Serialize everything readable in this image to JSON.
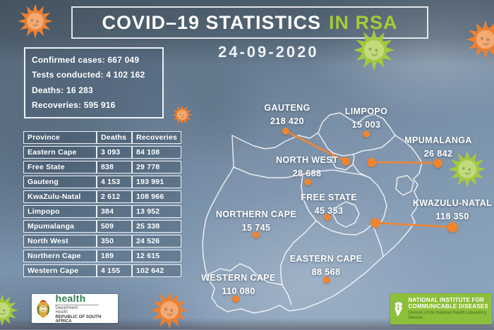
{
  "title": {
    "main": "COVID–19 STATISTICS",
    "highlight": "IN RSA"
  },
  "date": "24-09-2020",
  "summary": {
    "items": [
      {
        "text": "Confirmed cases: 667 049"
      },
      {
        "text": "Tests conducted: 4 102 162"
      },
      {
        "text": "Deaths: 16 283"
      },
      {
        "text": "Recoveries: 595 916"
      }
    ]
  },
  "table": {
    "headers": [
      "Province",
      "Deaths",
      "Recoveries"
    ],
    "rows": [
      [
        "Eastern Cape",
        "3 093",
        "84 108"
      ],
      [
        "Free State",
        "838",
        "29 778"
      ],
      [
        "Gauteng",
        "4 153",
        "193 991"
      ],
      [
        "KwaZulu-Natal",
        "2 612",
        "108 966"
      ],
      [
        "Limpopo",
        "384",
        "13 952"
      ],
      [
        "Mpumalanga",
        "509",
        "25 338"
      ],
      [
        "North West",
        "350",
        "24 526"
      ],
      [
        "Northern Cape",
        "189",
        "12 615"
      ],
      [
        "Western Cape",
        "4 155",
        "102 642"
      ]
    ]
  },
  "map": {
    "provinces": [
      {
        "name": "GAUTENG",
        "value": "218 420"
      },
      {
        "name": "LIMPOPO",
        "value": "15 003"
      },
      {
        "name": "NORTH WEST",
        "value": "28 688"
      },
      {
        "name": "MPUMALANGA",
        "value": "26 842"
      },
      {
        "name": "FREE STATE",
        "value": "45 353"
      },
      {
        "name": "KWAZULU-NATAL",
        "value": "118 350"
      },
      {
        "name": "NORTHERN CAPE",
        "value": "15 745"
      },
      {
        "name": "EASTERN CAPE",
        "value": "88 568"
      },
      {
        "name": "WESTERN CAPE",
        "value": "110 080"
      }
    ]
  },
  "logos": {
    "health": {
      "word": "health",
      "line1": "Department:",
      "line2": "Health",
      "line3": "REPUBLIC OF SOUTH AFRICA"
    },
    "nicd": {
      "line1": "NATIONAL INSTITUTE FOR",
      "line2": "COMMUNICABLE DISEASES",
      "line3": "Division of the National Health Laboratory Service"
    }
  },
  "icons": {
    "virus": "virus-icon",
    "coat_of_arms": "sa-coat-of-arms-icon",
    "africa": "africa-map-icon"
  },
  "colors": {
    "accent_orange": "#ef8531",
    "lime_green": "#a6cb35",
    "nicd_green": "#8dbf3b",
    "text": "#ffffff"
  }
}
